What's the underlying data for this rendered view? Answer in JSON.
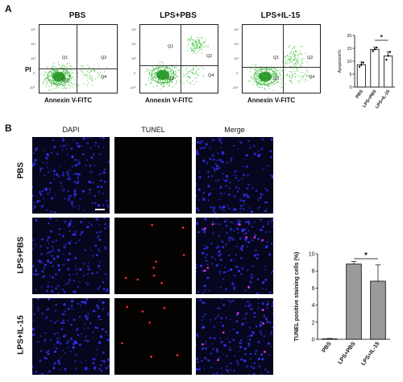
{
  "panel_a": {
    "letter": "A",
    "y_axis_label": "PI",
    "flow_plots": [
      {
        "title": "PBS",
        "xlabel": "Annexin V-FITC",
        "quadrants": [
          "Q1",
          "Q2",
          "Q3",
          "Q4"
        ]
      },
      {
        "title": "LPS+PBS",
        "xlabel": "Annexin V-FITC",
        "quadrants": [
          "Q1",
          "Q2",
          "Q3",
          "Q4"
        ]
      },
      {
        "title": "LPS+IL-15",
        "xlabel": "Annexin V-FITC",
        "quadrants": [
          "Q1",
          "Q2",
          "Q3",
          "Q4"
        ]
      }
    ],
    "flow_ticks": [
      "10⁵",
      "10⁴",
      "10³",
      "0",
      "-10³"
    ],
    "colors": {
      "events": "#3fc43f",
      "core": "#1f8f1f"
    }
  },
  "panel_b": {
    "letter": "B",
    "channels": [
      {
        "label": "DAPI",
        "color": "#2a2acf"
      },
      {
        "label": "TUNEL",
        "color": "#e02020"
      },
      {
        "label": "Merge",
        "color": "#c020c0"
      }
    ],
    "rows": [
      "PBS",
      "LPS+PBS",
      "LPS+IL-15"
    ]
  },
  "chart_data": [
    {
      "type": "bar",
      "categories": [
        "PBS",
        "LPS+PBS",
        "LPS+IL-15"
      ],
      "values": [
        8.7,
        14.6,
        12.1
      ],
      "errors": [
        1.0,
        0.8,
        1.6
      ],
      "points": [
        [
          7.9,
          8.6,
          9.5
        ],
        [
          13.9,
          14.6,
          15.3
        ],
        [
          10.6,
          12.1,
          13.6
        ]
      ],
      "ylabel": "Apoptosis%",
      "ylim": [
        0,
        20
      ],
      "yticks": [
        0,
        5,
        10,
        15,
        20
      ],
      "significance": {
        "from": 1,
        "to": 2,
        "label": "*"
      },
      "bar_color": "#ffffff"
    },
    {
      "type": "bar",
      "categories": [
        "PBS",
        "LPS+PBS",
        "LPS+IL-15"
      ],
      "values": [
        0.05,
        8.8,
        6.8
      ],
      "errors": [
        0.05,
        0.3,
        1.9
      ],
      "ylabel": "TUNEL positive staining cells (%)",
      "ylim": [
        0,
        10
      ],
      "yticks": [
        0,
        2,
        4,
        6,
        8,
        10
      ],
      "significance": {
        "from": 1,
        "to": 2,
        "label": "*"
      },
      "bar_color": "#9a9a9a"
    }
  ]
}
